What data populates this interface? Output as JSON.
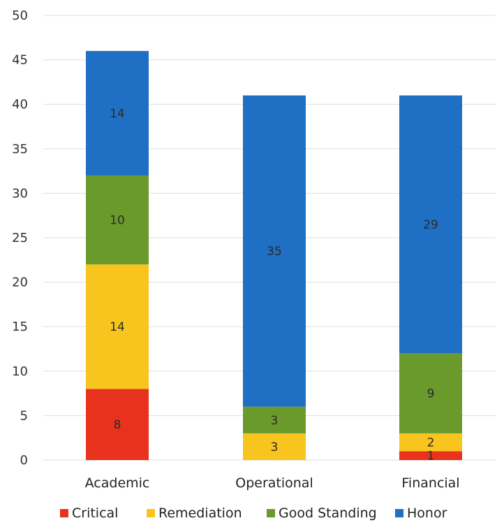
{
  "chart_data": {
    "type": "bar",
    "stacked": true,
    "categories": [
      "Academic",
      "Operational",
      "Financial"
    ],
    "series": [
      {
        "name": "Critical",
        "color": "#e8321e",
        "values": [
          8,
          0,
          1
        ]
      },
      {
        "name": "Remediation",
        "color": "#f7c51e",
        "values": [
          14,
          3,
          2
        ]
      },
      {
        "name": "Good Standing",
        "color": "#6b9a2c",
        "values": [
          10,
          3,
          9
        ]
      },
      {
        "name": "Honor",
        "color": "#1f6fc4",
        "values": [
          14,
          35,
          29
        ]
      }
    ],
    "data_labels": [
      [
        "8",
        "",
        "1"
      ],
      [
        "14",
        "3",
        "2"
      ],
      [
        "10",
        "3",
        "9"
      ],
      [
        "14",
        "35",
        "29"
      ]
    ],
    "ylim": [
      0,
      50
    ],
    "yticks": [
      0,
      5,
      10,
      15,
      20,
      25,
      30,
      35,
      40,
      45,
      50
    ],
    "grid": true,
    "legend_position": "bottom"
  }
}
